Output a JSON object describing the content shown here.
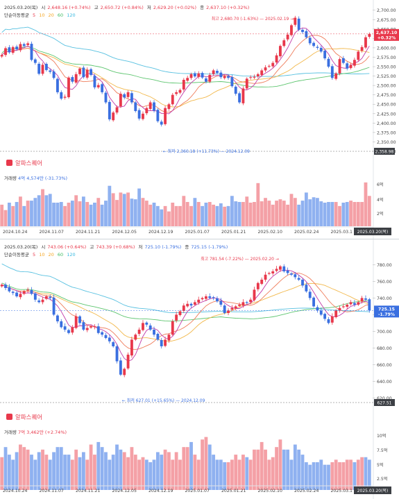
{
  "panels": [
    {
      "header": {
        "date": "2025.03.20(목)",
        "open_label": "시",
        "open_value": "2,648.16 (+0.74%)",
        "high_label": "고",
        "high_value": "2,650.72 (+0.84%)",
        "low_label": "저",
        "low_value": "2,629.20 (+0.02%)",
        "close_label": "종",
        "close_value": "2,637.10 (+0.32%)"
      },
      "ma_legend": {
        "title": "단순이동평균",
        "periods": [
          "5",
          "10",
          "20",
          "60",
          "120"
        ]
      },
      "brand": "알파스퀘어",
      "volume_label": "거래량",
      "volume_value": "4억 4,574만 (-31.73%)",
      "annotations": {
        "max_text": "최고 2,680.70 (-1.63%) — 2025.02.19 →",
        "min_text": "← 최저 2,360.18 (+11.73%) — 2024.12.09"
      },
      "last_price": {
        "value": "2,637.10",
        "change": "+0.32%"
      },
      "low_tag": "2,358.98",
      "price_ticks": [
        "2,700.00",
        "2,675.00",
        "2,650.00",
        "2,625.00",
        "2,600.00",
        "2,575.00",
        "2,550.00",
        "2,525.00",
        "2,500.00",
        "2,475.00",
        "2,450.00",
        "2,425.00",
        "2,400.00",
        "2,375.00",
        "2,350.00",
        "2,325.00"
      ],
      "volume_ticks": [
        "6억",
        "4억",
        "2억"
      ],
      "date_ticks": [
        "2024.10.24",
        "2024.11.07",
        "2024.11.21",
        "2024.12.05",
        "2024.12.19",
        "2025.01.07",
        "2025.01.21",
        "2025.02.10",
        "2025.02.24",
        "2025.03.1"
      ],
      "last_date": "2025.03.20(목)"
    },
    {
      "header": {
        "date": "2025.03.20(목)",
        "open_label": "시",
        "open_value": "743.06 (+0.64%)",
        "high_label": "고",
        "high_value": "743.39 (+0.68%)",
        "low_label": "저",
        "low_value": "725.10 (-1.79%)",
        "close_label": "종",
        "close_value": "725.15 (-1.79%)"
      },
      "ma_legend": {
        "title": "단순이동평균",
        "periods": [
          "5",
          "10",
          "20",
          "60",
          "120"
        ]
      },
      "brand": "알파스퀘어",
      "volume_label": "거래량",
      "volume_value": "7억 3,462만 (+2.74%)",
      "annotations": {
        "max_text": "최고 781.54 (-7.22%) — 2025.02.20 →",
        "min_text": "← 최저 627.01 (+15.65%) — 2024.12.09"
      },
      "last_price": {
        "value": "725.15",
        "change": "-1.79%"
      },
      "low_tag": "627.51",
      "price_ticks": [
        "780.00",
        "760.00",
        "740.00",
        "720.00",
        "700.00",
        "680.00",
        "660.00",
        "640.00",
        "620.00"
      ],
      "volume_ticks": [
        "10억",
        "7.5억",
        "5억",
        "2.5억"
      ],
      "date_ticks": [
        "2024.10.24",
        "2024.11.07",
        "2024.11.21",
        "2024.12.05",
        "2024.12.19",
        "2025.01.07",
        "2025.01.21",
        "2025.02.10",
        "2025.02.24",
        "2025.03.1"
      ],
      "last_date": "2025.03.20(목)"
    }
  ],
  "colors": {
    "up": "#e8384b",
    "down": "#3a6fe0",
    "vol_up": "#f4a0a6",
    "vol_down": "#8fb1f0",
    "ma5": "#e8384b",
    "ma10": "#f5a623",
    "ma20": "#f5a623",
    "ma60": "#3dbb61",
    "ma120": "#35b8e0",
    "ma5_line": "#c13aa8",
    "ma10_line": "#ef7c5a",
    "ma20_line": "#f2b84b",
    "ma60_line": "#5cc56e",
    "ma120_line": "#56c0e0"
  },
  "chart_data": [
    {
      "type": "candlestick",
      "title": "",
      "x_range": [
        "2024-10-22",
        "2025-03-20"
      ],
      "y_range": [
        2325,
        2705
      ],
      "closes": [
        2581,
        2599,
        2588,
        2602,
        2596,
        2610,
        2605,
        2612,
        2568,
        2560,
        2531,
        2555,
        2541,
        2536,
        2520,
        2482,
        2465,
        2470,
        2521,
        2510,
        2530,
        2545,
        2522,
        2542,
        2528,
        2495,
        2501,
        2482,
        2455,
        2410,
        2428,
        2442,
        2478,
        2468,
        2482,
        2455,
        2432,
        2412,
        2425,
        2440,
        2455,
        2433,
        2405,
        2396,
        2440,
        2450,
        2475,
        2482,
        2488,
        2515,
        2520,
        2530,
        2524,
        2532,
        2521,
        2510,
        2528,
        2540,
        2533,
        2522,
        2525,
        2520,
        2498,
        2478,
        2455,
        2492,
        2518,
        2522,
        2523,
        2530,
        2540,
        2548,
        2552,
        2560,
        2580,
        2605,
        2620,
        2635,
        2660,
        2680,
        2648,
        2642,
        2628,
        2612,
        2605,
        2600,
        2590,
        2572,
        2550,
        2520,
        2532,
        2570,
        2560,
        2545,
        2555,
        2568,
        2590,
        2602,
        2628,
        2637
      ],
      "volumes_100m": [
        3.2,
        2.4,
        3.5,
        3.0,
        3.6,
        4.4,
        3.0,
        3.8,
        3.8,
        4.2,
        4.6,
        5.5,
        4.6,
        4.8,
        3.5,
        3.5,
        3.6,
        3.0,
        3.5,
        3.8,
        4.6,
        3.7,
        4.4,
        3.6,
        3.2,
        3.5,
        4.2,
        3.2,
        3.8,
        6.0,
        4.9,
        3.9,
        5.0,
        4.8,
        5.0,
        4.1,
        4.0,
        5.6,
        4.2,
        3.8,
        3.2,
        3.5,
        3.0,
        2.5,
        3.0,
        2.2,
        3.5,
        3.0,
        3.0,
        4.5,
        3.6,
        3.0,
        4.2,
        3.6,
        3.0,
        3.5,
        3.6,
        3.2,
        3.0,
        3.4,
        2.9,
        3.0,
        4.5,
        3.7,
        3.6,
        3.6,
        4.4,
        3.5,
        3.6,
        6.4,
        3.7,
        4.2,
        3.8,
        3.2,
        3.8,
        4.0,
        3.8,
        3.2,
        4.8,
        4.2,
        3.2,
        3.8,
        5.0,
        4.0,
        4.3,
        4.2,
        3.7,
        3.5,
        3.6,
        3.6,
        3.6,
        3.0,
        3.5,
        3.6,
        3.8,
        3.6,
        3.6,
        3.6,
        6.5,
        4.5
      ],
      "annotations": [
        {
          "label": "최고 2,680.70",
          "date": "2025-02-19"
        },
        {
          "label": "최저 2,360.18",
          "date": "2024-12-09"
        }
      ]
    },
    {
      "type": "candlestick",
      "title": "",
      "x_range": [
        "2024-10-22",
        "2025-03-20"
      ],
      "y_range": [
        612,
        792
      ],
      "closes": [
        756,
        752,
        748,
        746,
        742,
        745,
        748,
        750,
        745,
        738,
        735,
        738,
        742,
        740,
        720,
        712,
        705,
        702,
        698,
        705,
        718,
        710,
        702,
        704,
        706,
        706,
        698,
        696,
        692,
        688,
        682,
        664,
        648,
        655,
        672,
        690,
        696,
        702,
        710,
        708,
        702,
        696,
        690,
        682,
        690,
        696,
        712,
        720,
        724,
        731,
        733,
        731,
        735,
        738,
        740,
        742,
        740,
        740,
        736,
        732,
        722,
        725,
        728,
        730,
        732,
        735,
        734,
        738,
        750,
        758,
        762,
        768,
        770,
        772,
        775,
        778,
        772,
        770,
        768,
        765,
        762,
        755,
        748,
        740,
        730,
        725,
        720,
        715,
        710,
        718,
        725,
        728,
        730,
        732,
        735,
        732,
        735,
        740,
        738,
        725
      ],
      "volumes_100m": [
        6.5,
        8.5,
        7.0,
        6.0,
        7.5,
        9.0,
        8.5,
        8.0,
        7.0,
        6.0,
        7.5,
        8.0,
        7.0,
        6.0,
        7.5,
        8.5,
        8.5,
        7.0,
        7.0,
        6.0,
        8.0,
        6.5,
        7.5,
        6.0,
        9.0,
        7.0,
        9.5,
        8.5,
        7.5,
        6.0,
        7.0,
        9.0,
        8.0,
        7.5,
        6.5,
        8.5,
        7.0,
        6.0,
        6.5,
        6.0,
        5.5,
        6.0,
        7.5,
        7.0,
        8.0,
        7.5,
        6.0,
        7.5,
        6.0,
        8.5,
        8.5,
        9.5,
        7.0,
        6.0,
        10.0,
        10.5,
        9.0,
        7.0,
        6.0,
        6.0,
        5.5,
        5.5,
        6.0,
        7.0,
        6.0,
        7.0,
        6.5,
        6.0,
        8.0,
        8.0,
        9.5,
        8.0,
        6.0,
        6.5,
        8.5,
        10.0,
        8.0,
        8.0,
        6.0,
        9.0,
        8.0,
        7.0,
        5.5,
        5.0,
        5.5,
        5.5,
        6.0,
        5.0,
        5.0,
        5.5,
        6.0,
        5.5,
        5.5,
        6.0,
        6.0,
        5.5,
        6.0,
        6.5,
        6.5,
        6.0
      ],
      "annotations": [
        {
          "label": "최고 781.54",
          "date": "2025-02-20"
        },
        {
          "label": "최저 627.01",
          "date": "2024-12-09"
        }
      ]
    }
  ]
}
